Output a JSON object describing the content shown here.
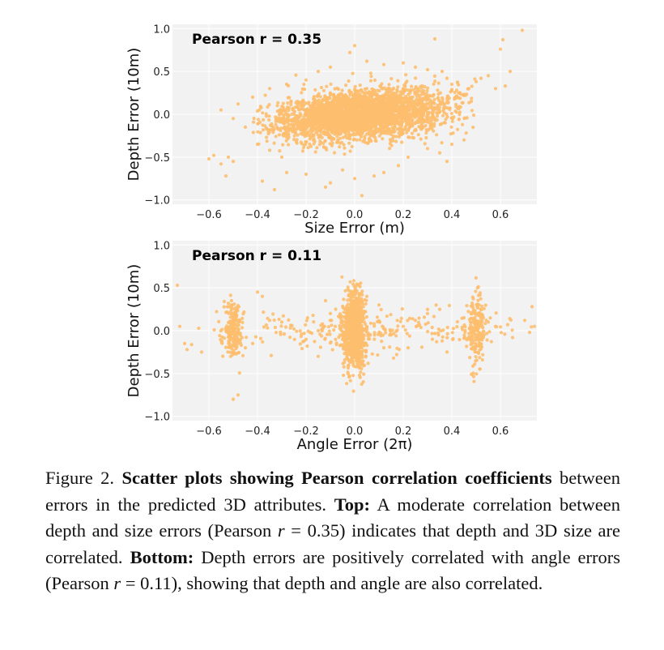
{
  "chart_data": [
    {
      "type": "scatter",
      "title": "",
      "annotation": "Pearson r = 0.35",
      "xlabel": "Size Error (m)",
      "ylabel": "Depth Error (10m)",
      "xlim": [
        -0.75,
        0.75
      ],
      "ylim": [
        -1.05,
        1.05
      ],
      "xticks": [
        -0.6,
        -0.4,
        -0.2,
        0.0,
        0.2,
        0.4,
        0.6
      ],
      "xtick_labels": [
        "−0.6",
        "−0.4",
        "−0.2",
        "0.0",
        "0.2",
        "0.4",
        "0.6"
      ],
      "yticks": [
        1.0,
        0.5,
        0.0,
        -0.5,
        -1.0
      ],
      "ytick_labels": [
        "1.0",
        "0.5",
        "0.0",
        "−0.5",
        "−1.0"
      ],
      "grid": true,
      "background": "#f2f2f2",
      "point_color": "#fdbe6e",
      "points": [
        [
          0.69,
          0.98
        ],
        [
          0.61,
          0.87
        ],
        [
          0.6,
          0.76
        ],
        [
          0.52,
          0.42
        ],
        [
          0.64,
          0.5
        ],
        [
          0.62,
          0.33
        ],
        [
          0.58,
          0.3
        ],
        [
          0.55,
          0.45
        ],
        [
          0.5,
          0.38
        ],
        [
          0.47,
          0.3
        ],
        [
          0.45,
          0.22
        ],
        [
          0.48,
          0.15
        ],
        [
          0.42,
          0.28
        ],
        [
          0.4,
          0.35
        ],
        [
          0.38,
          0.42
        ],
        [
          0.36,
          0.5
        ],
        [
          0.3,
          0.52
        ],
        [
          0.25,
          0.55
        ],
        [
          0.2,
          0.6
        ],
        [
          0.12,
          0.58
        ],
        [
          0.05,
          0.62
        ],
        [
          0.0,
          0.8
        ],
        [
          -0.02,
          0.72
        ],
        [
          -0.1,
          0.55
        ],
        [
          -0.15,
          0.5
        ],
        [
          -0.2,
          0.4
        ],
        [
          -0.28,
          0.35
        ],
        [
          -0.35,
          0.3
        ],
        [
          -0.42,
          0.2
        ],
        [
          -0.48,
          0.12
        ],
        [
          -0.55,
          0.05
        ],
        [
          -0.5,
          -0.05
        ],
        [
          -0.45,
          -0.15
        ],
        [
          -0.52,
          -0.5
        ],
        [
          -0.5,
          -0.55
        ],
        [
          -0.55,
          -0.58
        ],
        [
          -0.53,
          -0.72
        ],
        [
          -0.58,
          -0.48
        ],
        [
          -0.6,
          -0.52
        ],
        [
          -0.38,
          -0.78
        ],
        [
          -0.33,
          -0.88
        ],
        [
          -0.28,
          -0.68
        ],
        [
          -0.2,
          -0.7
        ],
        [
          -0.12,
          -0.85
        ],
        [
          -0.1,
          -0.8
        ],
        [
          -0.05,
          -0.65
        ],
        [
          0.0,
          -0.75
        ],
        [
          0.03,
          -0.95
        ],
        [
          0.08,
          -0.72
        ],
        [
          0.12,
          -0.68
        ],
        [
          0.18,
          -0.6
        ],
        [
          0.22,
          -0.5
        ],
        [
          0.3,
          -0.4
        ],
        [
          0.35,
          -0.45
        ],
        [
          0.4,
          -0.35
        ],
        [
          0.45,
          -0.3
        ],
        [
          0.38,
          -0.55
        ],
        [
          -0.3,
          -0.5
        ],
        [
          -0.35,
          -0.42
        ],
        [
          -0.4,
          -0.35
        ],
        [
          0.33,
          0.88
        ],
        [
          -0.1,
          0.25
        ],
        [
          0.05,
          0.3
        ],
        [
          0.15,
          0.2
        ],
        [
          0.22,
          0.28
        ]
      ],
      "cluster_params": {
        "n": 3200,
        "x_mean": 0.03,
        "x_sd": 0.17,
        "y_sd": 0.14,
        "slope": 0.35,
        "seed": 11
      }
    },
    {
      "type": "scatter",
      "title": "",
      "annotation": "Pearson r = 0.11",
      "xlabel": "Angle Error (2π)",
      "ylabel": "Depth Error (10m)",
      "xlim": [
        -0.75,
        0.75
      ],
      "ylim": [
        -1.05,
        1.05
      ],
      "xticks": [
        -0.6,
        -0.4,
        -0.2,
        0.0,
        0.2,
        0.4,
        0.6
      ],
      "xtick_labels": [
        "−0.6",
        "−0.4",
        "−0.2",
        "0.0",
        "0.2",
        "0.4",
        "0.6"
      ],
      "yticks": [
        1.0,
        0.5,
        0.0,
        -0.5,
        -1.0
      ],
      "ytick_labels": [
        "1.0",
        "0.5",
        "0.0",
        "−0.5",
        "−1.0"
      ],
      "grid": true,
      "background": "#f2f2f2",
      "point_color": "#fdbe6e",
      "points": [
        [
          -0.73,
          0.53
        ],
        [
          -0.72,
          0.05
        ],
        [
          -0.7,
          -0.15
        ],
        [
          -0.69,
          -0.22
        ],
        [
          -0.63,
          -0.25
        ],
        [
          0.73,
          0.28
        ],
        [
          0.74,
          0.05
        ],
        [
          0.72,
          -0.02
        ],
        [
          0.65,
          -0.08
        ],
        [
          0.7,
          0.12
        ],
        [
          -0.5,
          -0.8
        ],
        [
          -0.48,
          -0.75
        ],
        [
          -0.52,
          0.32
        ],
        [
          -0.45,
          -0.2
        ],
        [
          -0.42,
          -0.15
        ],
        [
          -0.4,
          0.45
        ],
        [
          -0.38,
          0.4
        ],
        [
          -0.35,
          0.12
        ],
        [
          -0.3,
          0.1
        ],
        [
          -0.25,
          0.02
        ],
        [
          -0.2,
          -0.1
        ],
        [
          -0.15,
          -0.3
        ],
        [
          -0.12,
          0.35
        ],
        [
          -0.1,
          0.2
        ],
        [
          -0.05,
          -0.1
        ],
        [
          0.05,
          0.4
        ],
        [
          0.1,
          0.3
        ],
        [
          0.12,
          -0.2
        ],
        [
          0.16,
          -0.32
        ],
        [
          0.2,
          0.05
        ],
        [
          0.22,
          -0.2
        ],
        [
          0.25,
          0.12
        ],
        [
          0.3,
          0.25
        ],
        [
          0.32,
          -0.1
        ],
        [
          0.35,
          0.25
        ],
        [
          0.36,
          -0.12
        ],
        [
          0.38,
          -0.25
        ],
        [
          0.3,
          0.2
        ],
        [
          0.45,
          0.15
        ],
        [
          0.55,
          0.1
        ],
        [
          0.58,
          0.05
        ],
        [
          -0.15,
          0.0
        ],
        [
          -0.08,
          0.05
        ],
        [
          0.08,
          0.08
        ],
        [
          0.15,
          -0.05
        ]
      ],
      "clusters": [
        {
          "n": 200,
          "x_mean": -0.5,
          "x_sd": 0.018,
          "y_sd": 0.16,
          "seed": 21
        },
        {
          "n": 850,
          "x_mean": 0.0,
          "x_sd": 0.022,
          "y_sd": 0.22,
          "seed": 22
        },
        {
          "n": 200,
          "x_mean": 0.5,
          "x_sd": 0.018,
          "y_sd": 0.2,
          "seed": 23
        },
        {
          "n": 260,
          "x_mean": 0.0,
          "x_sd": 0.32,
          "y_sd": 0.12,
          "seed": 24
        }
      ]
    }
  ],
  "caption": {
    "figure_label": "Figure 2.",
    "bold_title": "Scatter plots showing Pearson correlation coefficients",
    "text_1": "between errors in the predicted 3D attributes.",
    "top_label": "Top:",
    "text_2": "A moderate correlation between depth and size errors (Pearson",
    "r_symbol_1": "r",
    "r_value_1": "= 0.35)",
    "text_3": "indicates that depth and 3D size are correlated.",
    "bottom_label": "Bottom:",
    "text_4": "Depth errors are positively correlated with angle errors (Pearson",
    "r_symbol_2": "r",
    "r_value_2": "= 0.11),",
    "text_5": "showing that depth and angle are also correlated."
  }
}
